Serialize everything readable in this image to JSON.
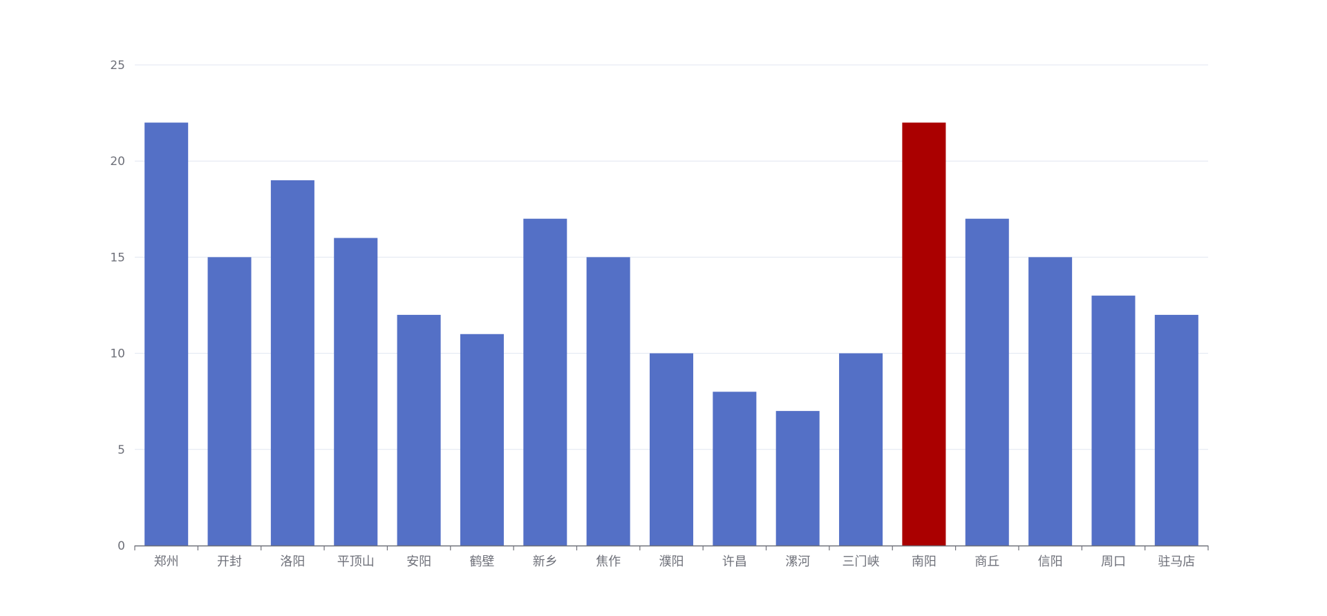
{
  "chart_data": {
    "type": "bar",
    "categories": [
      "郑州",
      "开封",
      "洛阳",
      "平顶山",
      "安阳",
      "鹤壁",
      "新乡",
      "焦作",
      "濮阳",
      "许昌",
      "漯河",
      "三门峡",
      "南阳",
      "商丘",
      "信阳",
      "周口",
      "驻马店"
    ],
    "values": [
      22,
      15,
      19,
      16,
      12,
      11,
      17,
      15,
      10,
      8,
      7,
      10,
      22,
      17,
      15,
      13,
      12
    ],
    "highlight_index": 12,
    "ylim": [
      0,
      25
    ],
    "yticks": [
      0,
      5,
      10,
      15,
      20,
      25
    ],
    "grid": true,
    "legend": "none"
  },
  "colors": {
    "bar": "#5470c6",
    "highlight": "#aa0000",
    "grid": "#e0e6f1",
    "axis": "#6e7079",
    "label": "#6e7079"
  }
}
